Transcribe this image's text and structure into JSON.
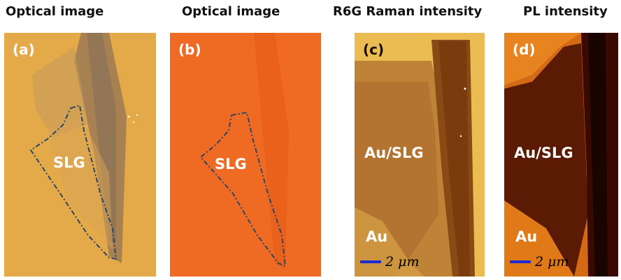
{
  "titles": {
    "a": "Optical image",
    "b": "Optical image",
    "c": "R6G Raman intensity",
    "d": "PL intensity"
  },
  "panels": {
    "a": {
      "label": "(a)",
      "region": "SLG"
    },
    "b": {
      "label": "(b)",
      "region": "SLG"
    },
    "c": {
      "label": "(c)",
      "region_top": "Au/SLG",
      "region_bottom": "Au",
      "scale": "2 μm"
    },
    "d": {
      "label": "(d)",
      "region_top": "Au/SLG",
      "region_bottom": "Au",
      "scale": "2 μm"
    }
  },
  "colors": {
    "panel_a_bg": "#e2a646",
    "panel_b_bg": "#ef6a22",
    "panel_c_bright": "#e6b84c",
    "panel_c_dark": "#7a3c0c",
    "panel_d_bright": "#d46a14",
    "panel_d_dark": "#3a0a00",
    "outline": "#2c4866",
    "scale_bar": "#1a2bd6"
  }
}
